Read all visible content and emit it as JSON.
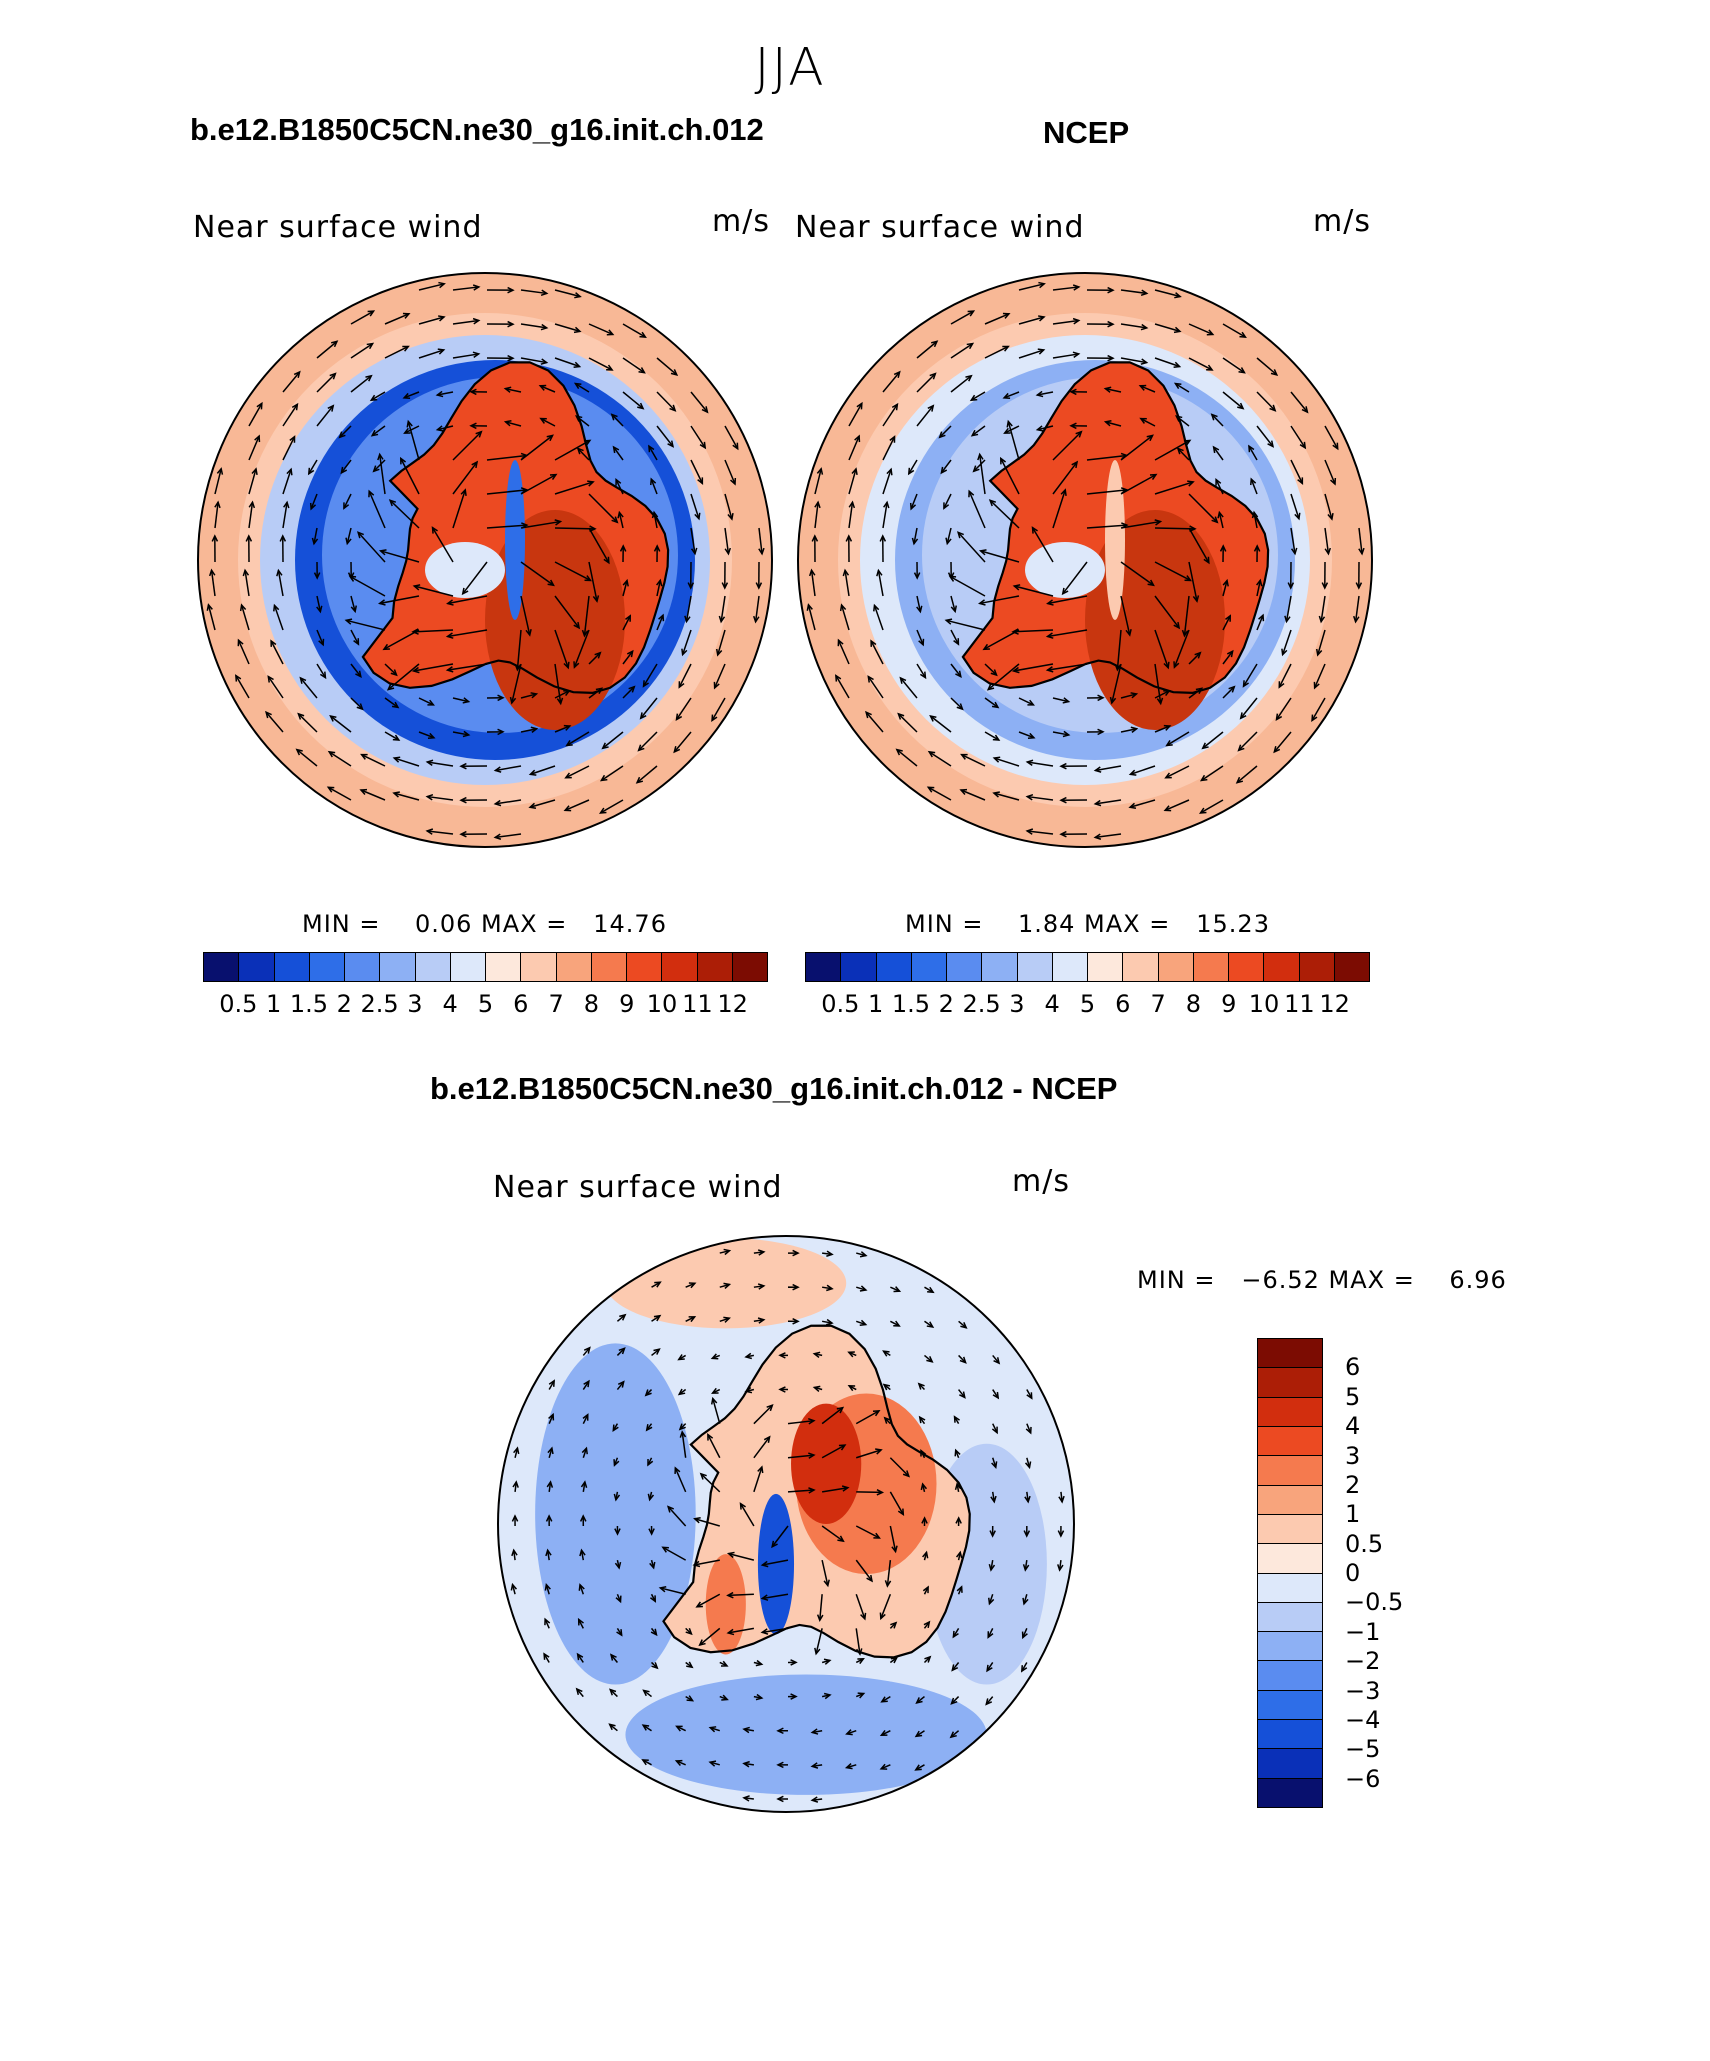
{
  "page": {
    "title": "JJA",
    "difference_title": "b.e12.B1850C5CN.ne30_g16.init.ch.012 - NCEP"
  },
  "panels": [
    {
      "case": "b.e12.B1850C5CN.ne30_g16.init.ch.012",
      "variable": "Near surface wind",
      "units": "m/s",
      "minmax": "MIN =    0.06 MAX =   14.76"
    },
    {
      "case": "NCEP",
      "variable": "Near surface wind",
      "units": "m/s",
      "minmax": "MIN =    1.84 MAX =   15.23"
    },
    {
      "variable": "Near surface wind",
      "units": "m/s",
      "minmax": "MIN =   −6.52 MAX =    6.96"
    }
  ],
  "colorbar_abs": {
    "colors": [
      "#08106e",
      "#0a30b8",
      "#1550d8",
      "#2e6ee8",
      "#5a8cf0",
      "#8db0f4",
      "#b8ccf6",
      "#dde8fa",
      "#fde8dc",
      "#fccab0",
      "#f8a47c",
      "#f57a4e",
      "#ec4a22",
      "#d22e0e",
      "#ac1e06",
      "#7c0c02"
    ],
    "labels": [
      "0.5",
      "1",
      "1.5",
      "2",
      "2.5",
      "3",
      "4",
      "5",
      "6",
      "7",
      "8",
      "9",
      "10",
      "11",
      "12"
    ]
  },
  "colorbar_diff": {
    "colors": [
      "#7c0c02",
      "#ac1e06",
      "#d22e0e",
      "#ec4a22",
      "#f57a4e",
      "#f8a47c",
      "#fccab0",
      "#fde8dc",
      "#dde8fa",
      "#b8ccf6",
      "#8db0f4",
      "#5a8cf0",
      "#2e6ee8",
      "#1550d8",
      "#0a30b8",
      "#08106e"
    ],
    "labels": [
      "6",
      "5",
      "4",
      "3",
      "2",
      "1",
      "0.5",
      "0",
      "−0.5",
      "−1",
      "−2",
      "−3",
      "−4",
      "−5",
      "−6"
    ]
  },
  "icons": {
    "map_1": "south-polar-wind-map",
    "map_2": "south-polar-wind-map",
    "map_3": "south-polar-wind-difference-map"
  }
}
